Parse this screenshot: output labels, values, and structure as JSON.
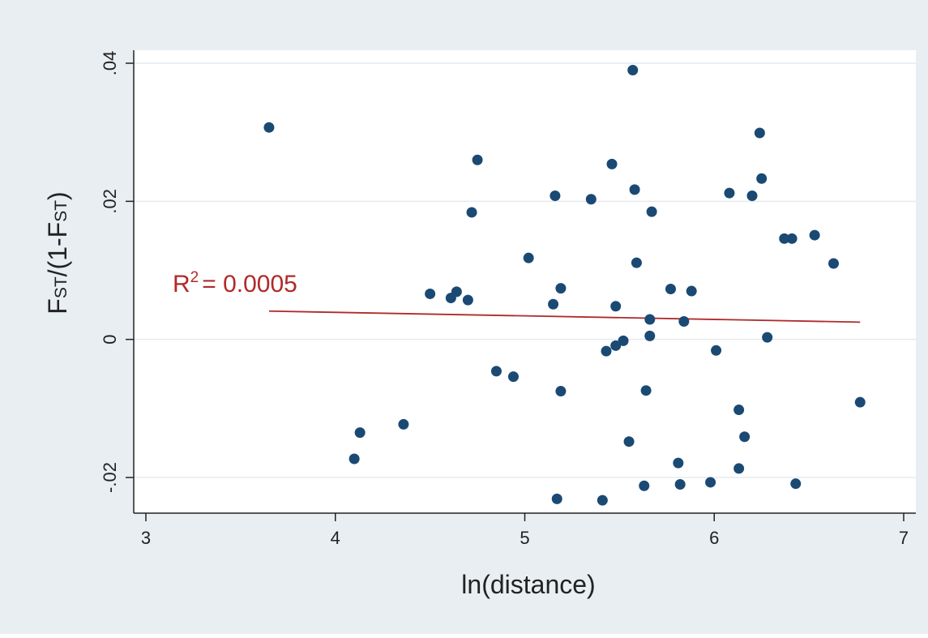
{
  "chart_data": {
    "type": "scatter",
    "xlabel": "ln(distance)",
    "ylabel": {
      "main": "F",
      "sub": "ST",
      "mid": "/(1-F",
      "sub2": "ST",
      "end": ")"
    },
    "xlim": [
      3,
      7
    ],
    "ylim": [
      -0.025,
      0.04
    ],
    "x_ticks": [
      3,
      4,
      5,
      6,
      7
    ],
    "x_tick_labels": [
      "3",
      "4",
      "5",
      "6",
      "7"
    ],
    "y_ticks": [
      -0.02,
      0,
      0.02,
      0.04
    ],
    "y_tick_labels": [
      "-.02",
      "0",
      ".02",
      ".04"
    ],
    "grid": true,
    "annotation": {
      "prefix": "R",
      "sup": "2",
      "suffix": "= 0.0005"
    },
    "fit_line": {
      "x": [
        3.65,
        6.77
      ],
      "y": [
        0.0041,
        0.0025
      ]
    },
    "points": [
      {
        "x": 3.65,
        "y": 0.0307
      },
      {
        "x": 4.1,
        "y": -0.0173
      },
      {
        "x": 4.13,
        "y": -0.0135
      },
      {
        "x": 4.36,
        "y": -0.0123
      },
      {
        "x": 4.5,
        "y": 0.0066
      },
      {
        "x": 4.61,
        "y": 0.006
      },
      {
        "x": 4.64,
        "y": 0.0069
      },
      {
        "x": 4.7,
        "y": 0.0057
      },
      {
        "x": 4.72,
        "y": 0.0184
      },
      {
        "x": 4.75,
        "y": 0.026
      },
      {
        "x": 4.85,
        "y": -0.0046
      },
      {
        "x": 4.94,
        "y": -0.0054
      },
      {
        "x": 5.02,
        "y": 0.0118
      },
      {
        "x": 5.15,
        "y": 0.0051
      },
      {
        "x": 5.16,
        "y": 0.0208
      },
      {
        "x": 5.17,
        "y": -0.0231
      },
      {
        "x": 5.19,
        "y": 0.0074
      },
      {
        "x": 5.19,
        "y": -0.0075
      },
      {
        "x": 5.35,
        "y": 0.0203
      },
      {
        "x": 5.41,
        "y": -0.0233
      },
      {
        "x": 5.43,
        "y": -0.0017
      },
      {
        "x": 5.46,
        "y": 0.0254
      },
      {
        "x": 5.48,
        "y": 0.0048
      },
      {
        "x": 5.48,
        "y": -0.0009
      },
      {
        "x": 5.52,
        "y": -0.0002
      },
      {
        "x": 5.55,
        "y": -0.0148
      },
      {
        "x": 5.57,
        "y": 0.039
      },
      {
        "x": 5.58,
        "y": 0.0217
      },
      {
        "x": 5.59,
        "y": 0.0111
      },
      {
        "x": 5.63,
        "y": -0.0212
      },
      {
        "x": 5.64,
        "y": -0.0074
      },
      {
        "x": 5.66,
        "y": 0.0029
      },
      {
        "x": 5.66,
        "y": 0.0005
      },
      {
        "x": 5.67,
        "y": 0.0185
      },
      {
        "x": 5.77,
        "y": 0.0073
      },
      {
        "x": 5.81,
        "y": -0.0179
      },
      {
        "x": 5.82,
        "y": -0.021
      },
      {
        "x": 5.84,
        "y": 0.0026
      },
      {
        "x": 5.88,
        "y": 0.007
      },
      {
        "x": 5.98,
        "y": -0.0207
      },
      {
        "x": 6.01,
        "y": -0.0016
      },
      {
        "x": 6.08,
        "y": 0.0212
      },
      {
        "x": 6.13,
        "y": -0.0102
      },
      {
        "x": 6.13,
        "y": -0.0187
      },
      {
        "x": 6.16,
        "y": -0.0141
      },
      {
        "x": 6.2,
        "y": 0.0208
      },
      {
        "x": 6.24,
        "y": 0.0299
      },
      {
        "x": 6.25,
        "y": 0.0233
      },
      {
        "x": 6.28,
        "y": 0.0003
      },
      {
        "x": 6.37,
        "y": 0.0146
      },
      {
        "x": 6.41,
        "y": 0.0146
      },
      {
        "x": 6.43,
        "y": -0.0209
      },
      {
        "x": 6.53,
        "y": 0.0151
      },
      {
        "x": 6.63,
        "y": 0.011
      },
      {
        "x": 6.77,
        "y": -0.0091
      }
    ]
  },
  "colors": {
    "outer_bg": "#e9eef2",
    "plot_bg": "#ffffff",
    "point": "#1a4a73",
    "fit_line": "#b02a2a",
    "annotation": "#b02a2a",
    "grid": "#e6eaee",
    "axis": "#222222"
  }
}
